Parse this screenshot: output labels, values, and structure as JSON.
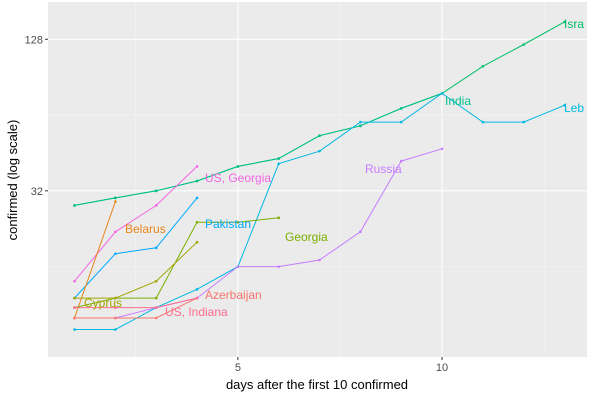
{
  "chart_data": {
    "type": "line",
    "title": "",
    "xlabel": "days after the first 10 confirmed",
    "ylabel": "confirmed  (log scale)",
    "y_scale": "log2",
    "xlim": [
      0.35,
      13.55
    ],
    "ylim": [
      7.0,
      180
    ],
    "grid": true,
    "legend": "none (series labeled directly at line ends)",
    "x_ticks": [
      5,
      10
    ],
    "y_ticks": [
      32,
      128
    ],
    "series": [
      {
        "name": "Israel",
        "color": "#00BE67",
        "points": [
          [
            1,
            28
          ],
          [
            2,
            30
          ],
          [
            3,
            32
          ],
          [
            4,
            35
          ],
          [
            5,
            40
          ],
          [
            6,
            43
          ],
          [
            7,
            53
          ],
          [
            8,
            58
          ],
          [
            9,
            68
          ],
          [
            10,
            78
          ],
          [
            11,
            100
          ],
          [
            12,
            122
          ],
          [
            13,
            150
          ]
        ]
      },
      {
        "name": "India",
        "color": "#00C08B",
        "points": [
          [
            1,
            28
          ],
          [
            2,
            30
          ],
          [
            3,
            32
          ],
          [
            4,
            35
          ],
          [
            5,
            40
          ],
          [
            6,
            43
          ],
          [
            7,
            53
          ],
          [
            8,
            58
          ],
          [
            9,
            68
          ],
          [
            10,
            78
          ]
        ]
      },
      {
        "name": "Lebanon",
        "color": "#00B9E3",
        "points": [
          [
            1,
            9
          ],
          [
            2,
            9
          ],
          [
            3,
            11
          ],
          [
            4,
            13
          ],
          [
            5,
            16
          ],
          [
            6,
            41
          ],
          [
            7,
            46
          ],
          [
            8,
            60
          ],
          [
            9,
            60
          ],
          [
            10,
            78
          ],
          [
            11,
            60
          ],
          [
            12,
            60
          ],
          [
            13,
            70
          ]
        ]
      },
      {
        "name": "Russia",
        "color": "#C77CFF",
        "points": [
          [
            1,
            10
          ],
          [
            2,
            10
          ],
          [
            3,
            11
          ],
          [
            4,
            12
          ],
          [
            5,
            16
          ],
          [
            6,
            16
          ],
          [
            7,
            17
          ],
          [
            8,
            22
          ],
          [
            9,
            42
          ],
          [
            10,
            47
          ]
        ]
      },
      {
        "name": "US, Georgia",
        "color": "#F564E3",
        "points": [
          [
            1,
            14
          ],
          [
            2,
            22
          ],
          [
            3,
            28
          ],
          [
            4,
            40
          ]
        ]
      },
      {
        "name": "Pakistan",
        "color": "#00A9FF",
        "points": [
          [
            1,
            12
          ],
          [
            2,
            18
          ],
          [
            3,
            19
          ],
          [
            4,
            30
          ]
        ]
      },
      {
        "name": "Belarus",
        "color": "#E7861B",
        "points": [
          [
            1,
            10
          ],
          [
            2,
            29
          ]
        ]
      },
      {
        "name": "Georgia",
        "color": "#7CAE00",
        "points": [
          [
            1,
            11
          ],
          [
            2,
            12
          ],
          [
            3,
            12
          ],
          [
            4,
            24
          ],
          [
            5,
            24
          ],
          [
            6,
            25
          ]
        ]
      },
      {
        "name": "Azerbaijan",
        "color": "#F8766D",
        "points": [
          [
            1,
            10
          ],
          [
            2,
            10
          ],
          [
            3,
            10
          ],
          [
            4,
            12
          ]
        ]
      },
      {
        "name": "Cyprus",
        "color": "#A3A500",
        "points": [
          [
            1,
            12
          ],
          [
            2,
            12
          ],
          [
            3,
            14
          ],
          [
            4,
            20
          ]
        ]
      },
      {
        "name": "US, Indiana",
        "color": "#FF6C91",
        "points": [
          [
            1,
            11
          ],
          [
            2,
            11
          ],
          [
            3,
            11
          ],
          [
            4,
            12
          ]
        ]
      }
    ],
    "direct_labels": [
      {
        "text": "Isra",
        "color": "#00BE67"
      },
      {
        "text": "India",
        "color": "#00C08B"
      },
      {
        "text": "Leb",
        "color": "#00B9E3"
      },
      {
        "text": "Russia",
        "color": "#C77CFF"
      },
      {
        "text": "US, Georgia",
        "color": "#F564E3"
      },
      {
        "text": "Pakistan",
        "color": "#00A9FF"
      },
      {
        "text": "Belarus",
        "color": "#E7861B"
      },
      {
        "text": "Georgia",
        "color": "#7CAE00"
      },
      {
        "text": "Azerbaijan",
        "color": "#F8766D"
      },
      {
        "text": "Cyprus",
        "color": "#A3A500"
      },
      {
        "text": "US, Indiana",
        "color": "#FF6C91"
      }
    ]
  },
  "colors": {
    "panel_background": "#EBEBEB",
    "grid_major": "#FFFFFF",
    "tick_label": "#4D4D4D"
  }
}
